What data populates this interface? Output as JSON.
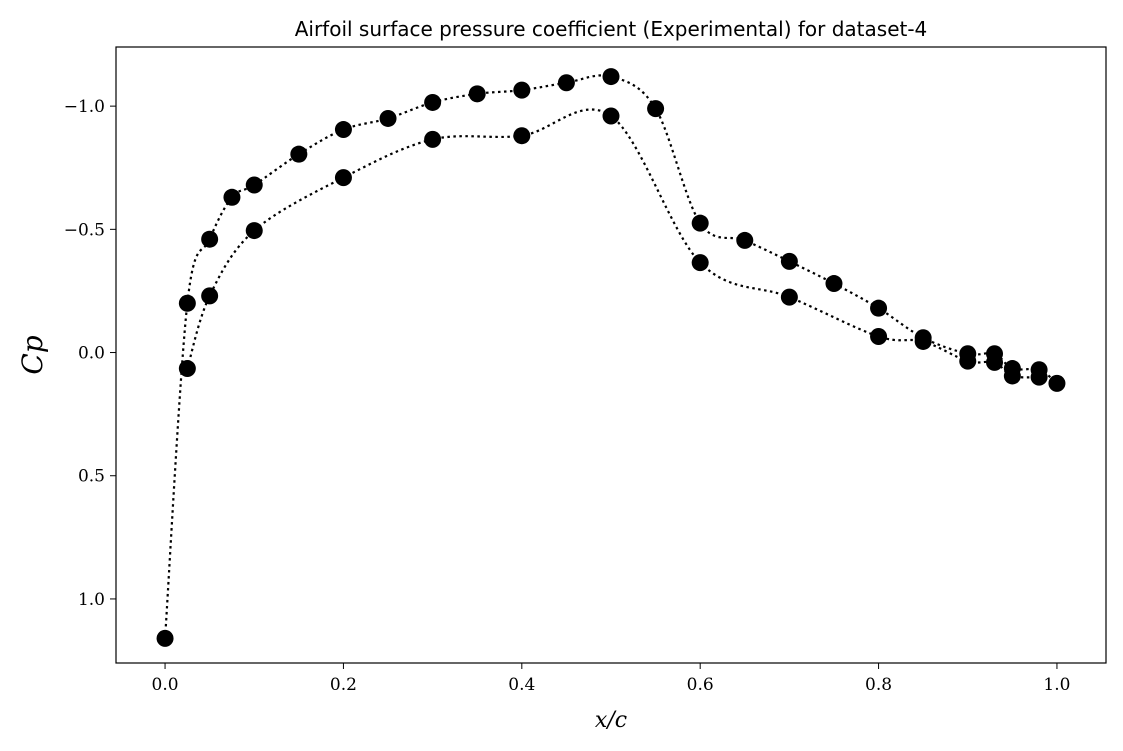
{
  "chart_data": {
    "type": "scatter",
    "title": "Airfoil surface pressure coefficient (Experimental) for dataset-4",
    "xlabel": "x/c",
    "ylabel": "Cp",
    "xlim": [
      -0.055,
      1.055
    ],
    "ylim": [
      1.26,
      -1.24
    ],
    "y_inverted": true,
    "grid": false,
    "x_ticks": [
      {
        "value": 0.0,
        "label": "0.0"
      },
      {
        "value": 0.2,
        "label": "0.2"
      },
      {
        "value": 0.4,
        "label": "0.4"
      },
      {
        "value": 0.6,
        "label": "0.6"
      },
      {
        "value": 0.8,
        "label": "0.8"
      },
      {
        "value": 1.0,
        "label": "1.0"
      }
    ],
    "y_ticks": [
      {
        "value": -1.0,
        "label": "−1.0"
      },
      {
        "value": -0.5,
        "label": "−0.5"
      },
      {
        "value": 0.0,
        "label": "0.0"
      },
      {
        "value": 0.5,
        "label": "0.5"
      },
      {
        "value": 1.0,
        "label": "1.0"
      }
    ],
    "series": [
      {
        "marker": "circle",
        "color": "#000000",
        "line_style": "dotted",
        "x": [
          0.0,
          0.025,
          0.05,
          0.075,
          0.1,
          0.15,
          0.2,
          0.25,
          0.3,
          0.35,
          0.4,
          0.45,
          0.5,
          0.55,
          0.6,
          0.65,
          0.7,
          0.75,
          0.8,
          0.85,
          0.9,
          0.93,
          0.95,
          0.98,
          1.0
        ],
        "y": [
          1.16,
          -0.2,
          -0.46,
          -0.63,
          -0.68,
          -0.805,
          -0.905,
          -0.95,
          -1.015,
          -1.05,
          -1.065,
          -1.095,
          -1.12,
          -0.99,
          -0.525,
          -0.455,
          -0.37,
          -0.28,
          -0.18,
          -0.06,
          0.005,
          0.005,
          0.065,
          0.07,
          0.125
        ]
      },
      {
        "marker": "circle",
        "color": "#000000",
        "line_style": "dotted",
        "x": [
          0.025,
          0.05,
          0.1,
          0.2,
          0.3,
          0.4,
          0.5,
          0.6,
          0.7,
          0.8,
          0.85,
          0.9,
          0.93,
          0.95,
          0.98
        ],
        "y": [
          0.065,
          -0.23,
          -0.495,
          -0.71,
          -0.865,
          -0.88,
          -0.96,
          -0.365,
          -0.225,
          -0.065,
          -0.045,
          0.035,
          0.04,
          0.095,
          0.1
        ]
      }
    ]
  }
}
